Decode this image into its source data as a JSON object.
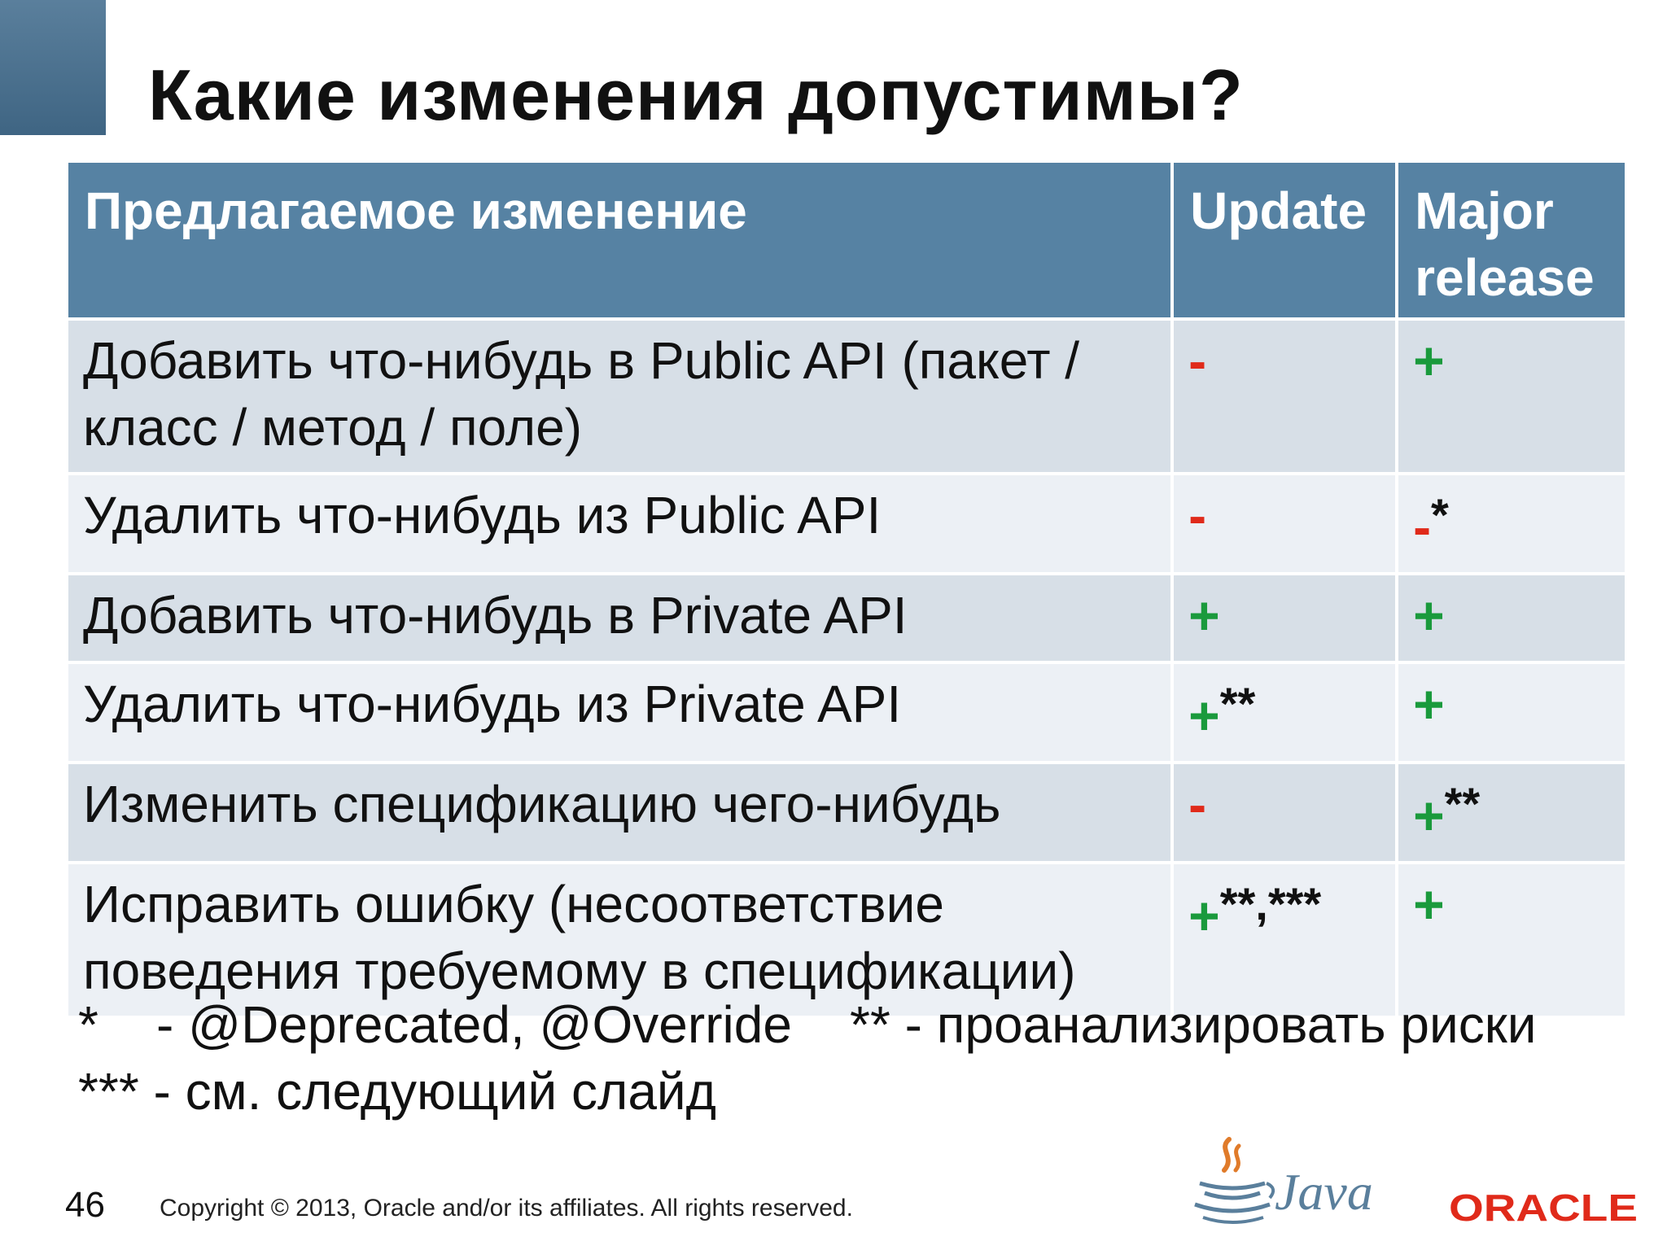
{
  "slide": {
    "title": "Какие изменения допустимы?",
    "page_number": "46",
    "copyright": "Copyright © 2013, Oracle and/or its affiliates. All rights reserved."
  },
  "table": {
    "headers": [
      "Предлагаемое  изменение",
      "Update",
      "Major release"
    ],
    "rows": [
      {
        "change": "Добавить что-нибудь в Public API (пакет / класс / метод / поле)",
        "update": {
          "sym": "-",
          "note": ""
        },
        "major": {
          "sym": "+",
          "note": ""
        }
      },
      {
        "change": "Удалить что-нибудь из Public API",
        "update": {
          "sym": "-",
          "note": ""
        },
        "major": {
          "sym": "-",
          "note": "*"
        }
      },
      {
        "change": "Добавить что-нибудь в Private API",
        "update": {
          "sym": "+",
          "note": ""
        },
        "major": {
          "sym": "+",
          "note": ""
        }
      },
      {
        "change": "Удалить что-нибудь из Private API",
        "update": {
          "sym": "+",
          "note": "**"
        },
        "major": {
          "sym": "+",
          "note": ""
        }
      },
      {
        "change": "Изменить спецификацию чего-нибудь",
        "update": {
          "sym": "-",
          "note": ""
        },
        "major": {
          "sym": "+",
          "note": "**"
        }
      },
      {
        "change": "Исправить ошибку (несоответствие поведения требуемому в спецификации)",
        "update": {
          "sym": "+",
          "note": "**,***"
        },
        "major": {
          "sym": "+",
          "note": ""
        }
      }
    ]
  },
  "footnotes": {
    "line1": "*    - @Deprecated, @Override    ** - проанализировать риски",
    "line2": "*** - см. следующий слайд"
  },
  "logos": {
    "java": "Java",
    "oracle": "ORACLE"
  },
  "colors": {
    "header_bg": "#5682a3",
    "row_dark": "#d7dfe7",
    "row_light": "#ecf0f5",
    "plus": "#1a9a3c",
    "minus": "#e02a1a",
    "oracle_red": "#e02a1a"
  }
}
